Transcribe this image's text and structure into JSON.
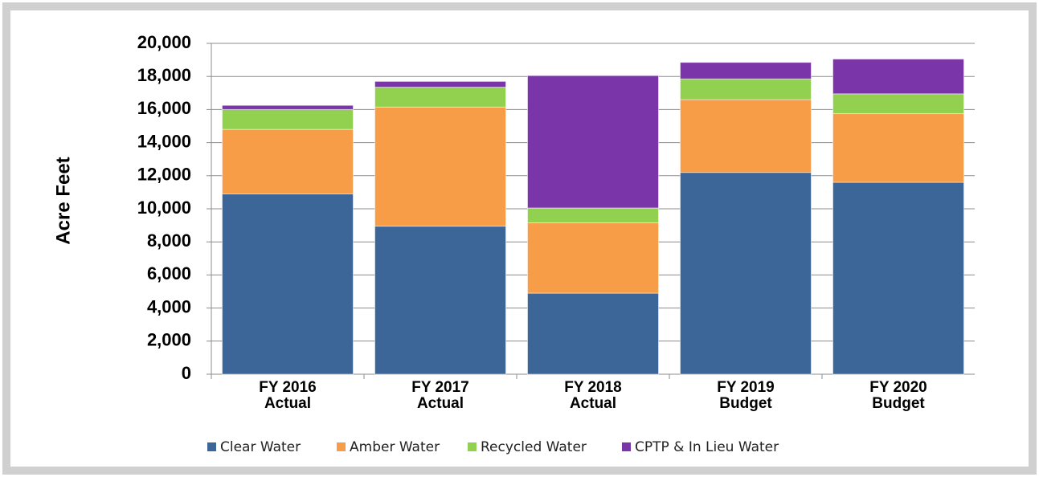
{
  "chart_data": {
    "type": "stacked_bar",
    "y_label": "Acre Feet",
    "categories": [
      "FY 2016 Actual",
      "FY 2017 Actual",
      "FY 2018 Actual",
      "FY 2019 Budget",
      "FY 2020 Budget"
    ],
    "series": [
      {
        "name": "Clear Water",
        "color": "#3d6698",
        "values": [
          10900,
          8950,
          4900,
          12200,
          11600
        ]
      },
      {
        "name": "Amber Water",
        "color": "#f79c47",
        "values": [
          3900,
          7200,
          4250,
          4400,
          4150
        ]
      },
      {
        "name": "Recycled Water",
        "color": "#92d050",
        "values": [
          1200,
          1200,
          900,
          1250,
          1200
        ]
      },
      {
        "name": "CPTP & In Lieu Water",
        "color": "#7a35a8",
        "values": [
          250,
          350,
          8000,
          1000,
          2100
        ]
      }
    ],
    "ylim": [
      0,
      20000
    ],
    "yticks": [
      {
        "value": 0,
        "label": "0"
      },
      {
        "value": 2000,
        "label": "2,000"
      },
      {
        "value": 4000,
        "label": "4,000"
      },
      {
        "value": 6000,
        "label": "6,000"
      },
      {
        "value": 8000,
        "label": "8,000"
      },
      {
        "value": 10000,
        "label": "10,000"
      },
      {
        "value": 12000,
        "label": "12,000"
      },
      {
        "value": 14000,
        "label": "14,000"
      },
      {
        "value": 16000,
        "label": "16,000"
      },
      {
        "value": 18000,
        "label": "18,000"
      },
      {
        "value": 20000,
        "label": "20,000"
      }
    ],
    "grid": true,
    "legend": "bottom"
  }
}
